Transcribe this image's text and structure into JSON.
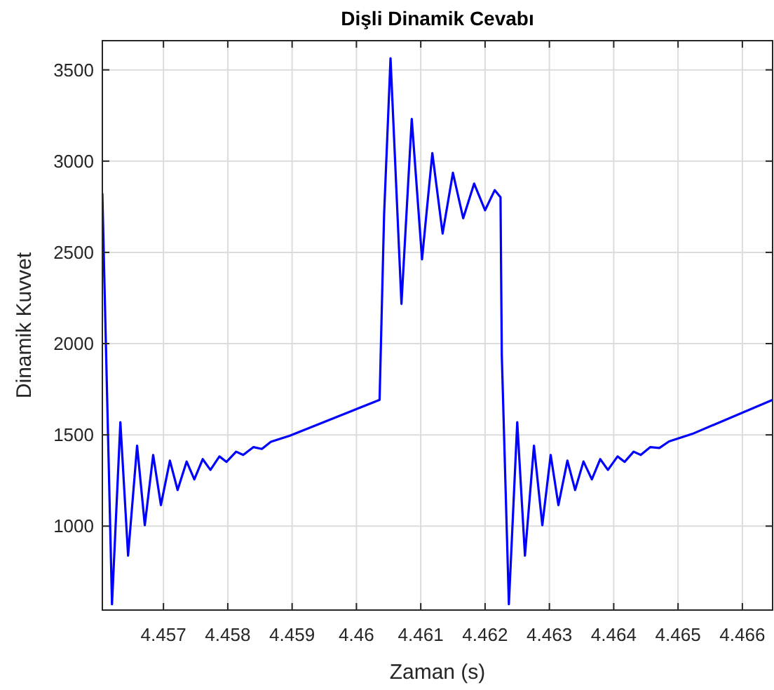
{
  "chart_data": {
    "type": "line",
    "title": "Dişli Dinamik Cevabı",
    "xlabel": "Zaman (s)",
    "ylabel": "Dinamik Kuvvet",
    "xlim": [
      4.45605,
      4.46647
    ],
    "ylim": [
      540,
      3660
    ],
    "xticks": [
      4.457,
      4.458,
      4.459,
      4.46,
      4.461,
      4.462,
      4.463,
      4.464,
      4.465,
      4.466
    ],
    "yticks": [
      1000,
      1500,
      2000,
      2500,
      3000,
      3500
    ],
    "grid": true,
    "marker": "none",
    "line_style": "solid",
    "series": [
      {
        "color": "#0000ff",
        "x": [
          4.45605,
          4.4562,
          4.45633,
          4.45645,
          4.45659,
          4.45671,
          4.45684,
          4.45696,
          4.4571,
          4.45722,
          4.45736,
          4.45748,
          4.45761,
          4.45773,
          4.45787,
          4.45798,
          4.45813,
          4.45824,
          4.4584,
          4.45853,
          4.45867,
          4.45896,
          4.46036,
          4.46043,
          4.46053,
          4.4607,
          4.46086,
          4.46102,
          4.46118,
          4.46134,
          4.4615,
          4.46166,
          4.46183,
          4.462,
          4.46215,
          4.46224,
          4.46226,
          4.46237,
          4.4625,
          4.46262,
          4.46276,
          4.46289,
          4.46302,
          4.46314,
          4.46328,
          4.4634,
          4.46353,
          4.46366,
          4.46379,
          4.46391,
          4.46406,
          4.46417,
          4.46431,
          4.46442,
          4.46457,
          4.46471,
          4.46486,
          4.46522,
          4.46647
        ],
        "values": [
          2821,
          572,
          1569,
          838,
          1441,
          1005,
          1390,
          1115,
          1359,
          1198,
          1354,
          1256,
          1367,
          1308,
          1382,
          1352,
          1408,
          1390,
          1433,
          1423,
          1462,
          1495,
          1692,
          2705,
          3564,
          2218,
          3231,
          2462,
          3044,
          2603,
          2936,
          2687,
          2877,
          2731,
          2841,
          2802,
          1936,
          572,
          1569,
          838,
          1441,
          1005,
          1390,
          1115,
          1359,
          1198,
          1354,
          1256,
          1367,
          1308,
          1382,
          1352,
          1408,
          1390,
          1433,
          1428,
          1464,
          1505,
          1692
        ]
      }
    ]
  }
}
